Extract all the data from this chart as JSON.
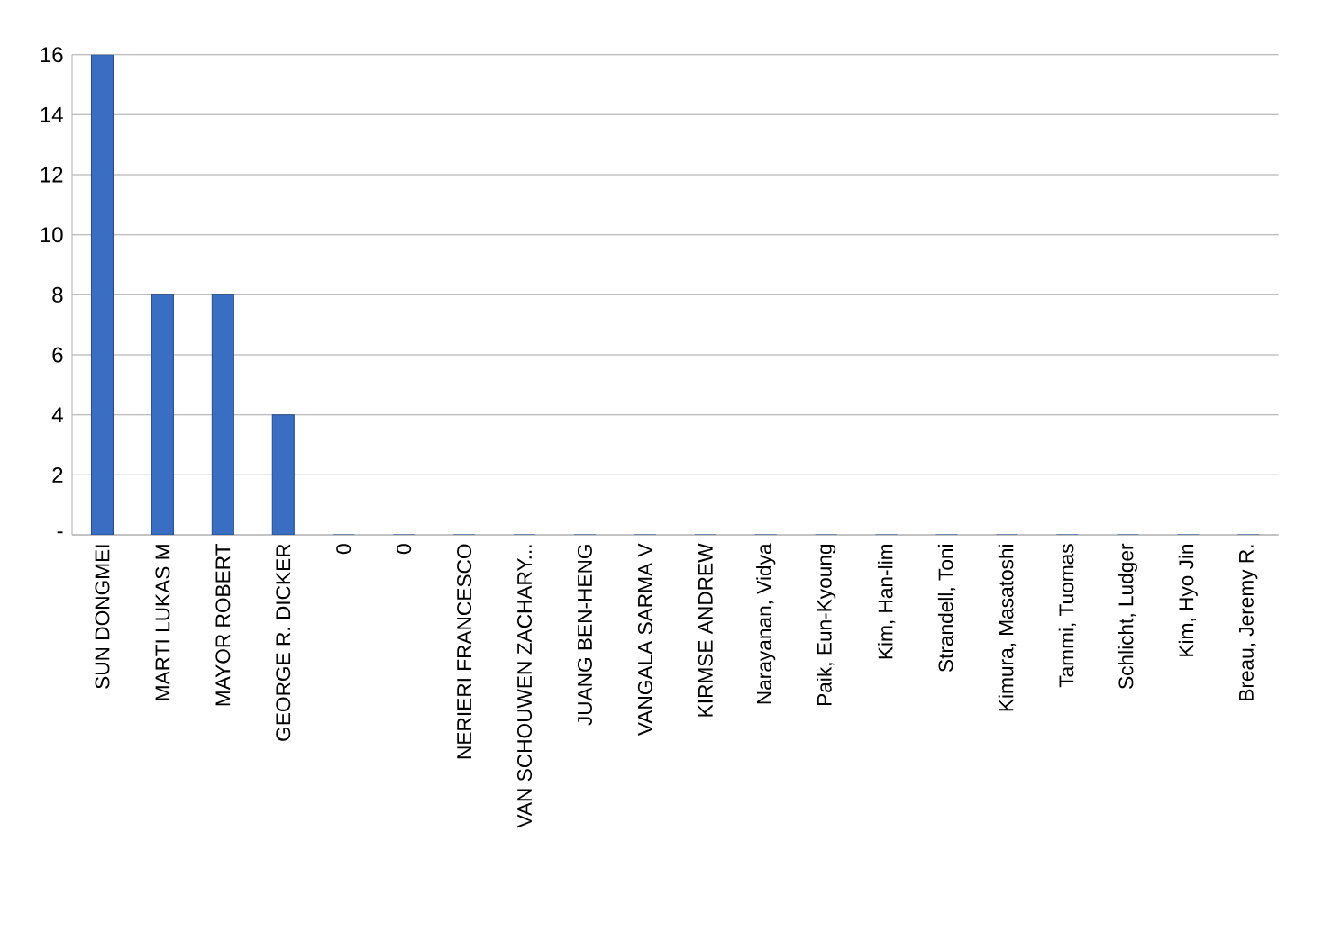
{
  "chart_data": {
    "type": "bar",
    "categories": [
      "SUN DONGMEI",
      "MARTI LUKAS M",
      "MAYOR ROBERT",
      "GEORGE R. DICKER",
      "0",
      "0",
      "NERIERI FRANCESCO",
      "VAN SCHOUWEN ZACHARY...",
      "JUANG BEN-HENG",
      "VANGALA SARMA V",
      "KIRMSE ANDREW",
      "Narayanan, Vidya",
      "Paik, Eun-Kyoung",
      "Kim, Han-lim",
      "Strandell, Toni",
      "Kimura, Masatoshi",
      "Tammi, Tuomas",
      "Schlicht, Ludger",
      "Kim, Hyo Jin",
      "Breau, Jeremy R."
    ],
    "values": [
      16,
      8,
      8,
      4,
      0,
      0,
      0,
      0,
      0,
      0,
      0,
      0,
      0,
      0,
      0,
      0,
      0,
      0,
      0,
      0
    ],
    "color": "#3a6ec2",
    "ylim": [
      0,
      16
    ],
    "yticks": [
      {
        "value": 0,
        "label": "-"
      },
      2,
      4,
      6,
      8,
      10,
      12,
      14,
      16
    ],
    "grid": "y"
  }
}
